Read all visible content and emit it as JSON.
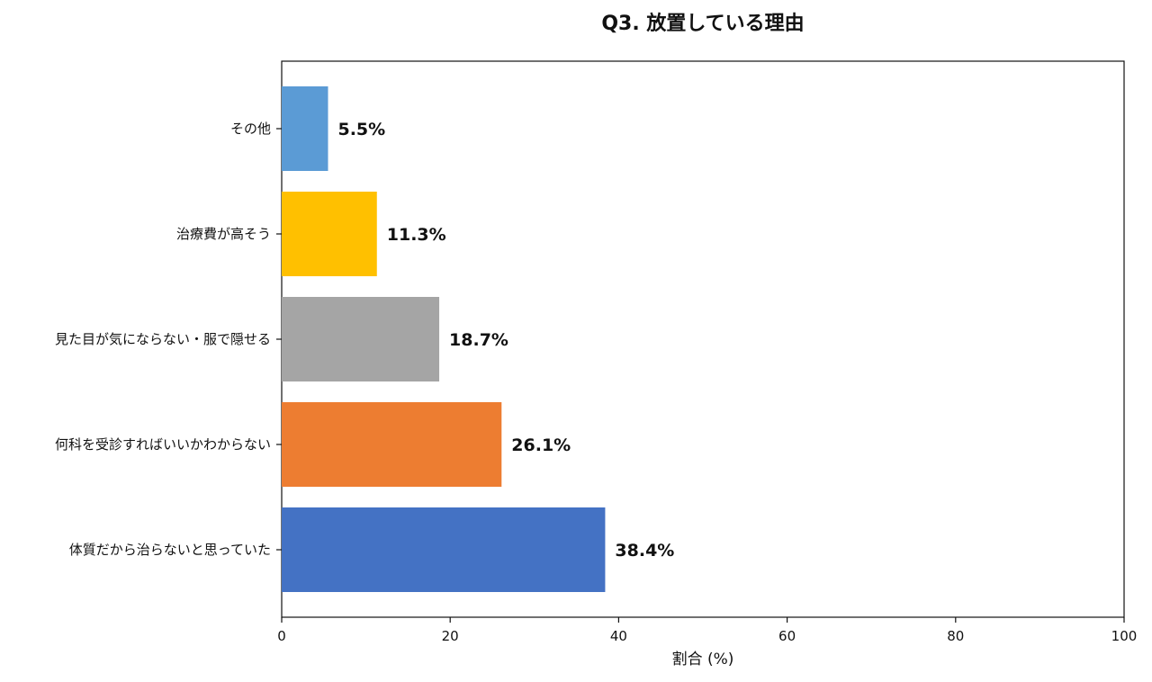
{
  "chart_data": {
    "type": "bar",
    "orientation": "horizontal",
    "title": "Q3. 放置している理由",
    "xlabel": "割合 (%)",
    "ylabel": "",
    "xlim": [
      0,
      100
    ],
    "xticks": [
      0,
      20,
      40,
      60,
      80,
      100
    ],
    "grid": false,
    "categories": [
      "体質だから治らないと思っていた",
      "何科を受診すればいいかわからない",
      "見た目が気にならない・服で隠せる",
      "治療費が高そう",
      "その他"
    ],
    "values": [
      38.4,
      26.1,
      18.7,
      11.3,
      5.5
    ],
    "value_labels": [
      "38.4%",
      "26.1%",
      "18.7%",
      "11.3%",
      "5.5%"
    ],
    "colors": [
      "#4472C4",
      "#ED7D31",
      "#A5A5A5",
      "#FFC000",
      "#5B9BD5"
    ]
  }
}
